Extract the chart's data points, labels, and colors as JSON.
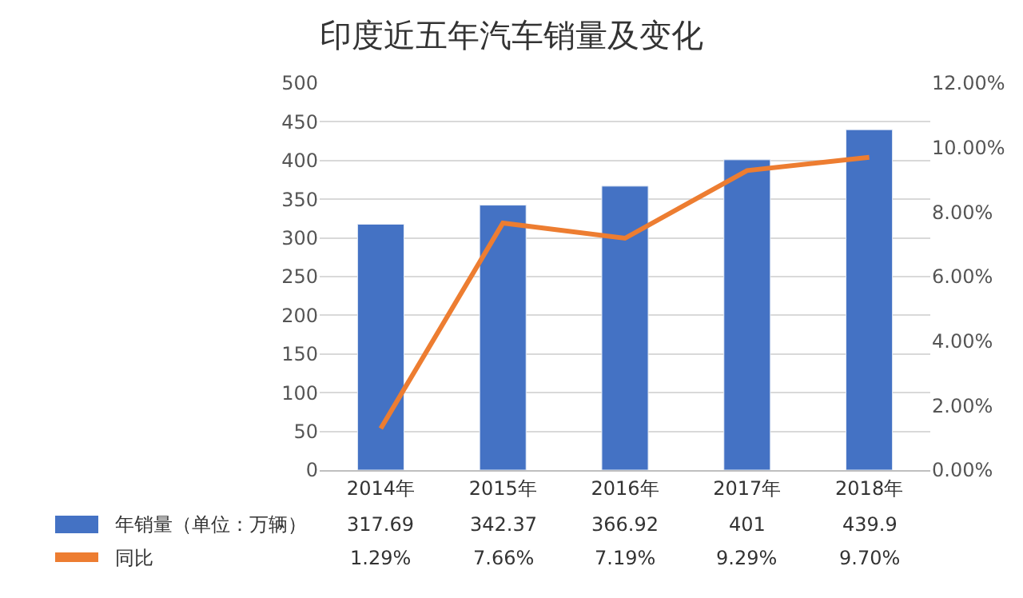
{
  "chart_data": {
    "type": "bar",
    "title": "印度近五年汽车销量及变化",
    "categories": [
      "2014年",
      "2015年",
      "2016年",
      "2017年",
      "2018年"
    ],
    "series": [
      {
        "name": "年销量（单位：万辆）",
        "color": "#4472c4",
        "values": [
          317.69,
          342.37,
          366.92,
          401,
          439.9
        ],
        "value_labels": [
          "317.69",
          "342.37",
          "366.92",
          "401",
          "439.9"
        ]
      },
      {
        "name": "同比",
        "type": "line",
        "axis": "y2",
        "color": "#ed7d31",
        "values": [
          1.29,
          7.66,
          7.19,
          9.29,
          9.7
        ],
        "value_labels": [
          "1.29%",
          "7.66%",
          "7.19%",
          "9.29%",
          "9.70%"
        ]
      }
    ],
    "ylim": [
      0,
      500
    ],
    "yticks": [
      0,
      50,
      100,
      150,
      200,
      250,
      300,
      350,
      400,
      450,
      500
    ],
    "y2lim": [
      0,
      12
    ],
    "y2ticks": [
      {
        "value": 0,
        "label": "0.00%"
      },
      {
        "value": 2,
        "label": "2.00%"
      },
      {
        "value": 4,
        "label": "4.00%"
      },
      {
        "value": 6,
        "label": "6.00%"
      },
      {
        "value": 8,
        "label": "8.00%"
      },
      {
        "value": 10,
        "label": "10.00%"
      },
      {
        "value": 12,
        "label": "12.00%"
      }
    ],
    "grid": "y",
    "marker": "none",
    "line_style": "solid",
    "legend": "bottom left"
  }
}
